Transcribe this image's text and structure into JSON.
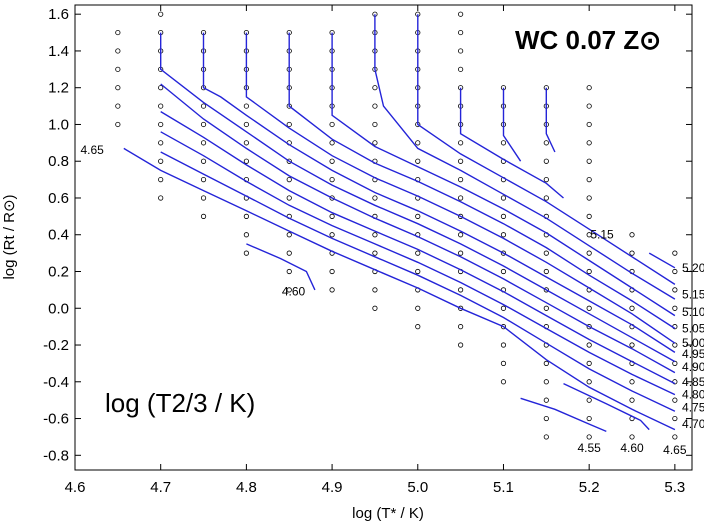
{
  "chart_data": {
    "type": "line",
    "title": "WC 0.07 Z⊙",
    "inner_label": "log (T2/3  / K)",
    "xlabel": "log (T* / K)",
    "ylabel": "log (Rt / R⊙)",
    "xlim": [
      4.6,
      5.32
    ],
    "ylim": [
      -0.88,
      1.65
    ],
    "xticks": [
      4.6,
      4.7,
      4.8,
      4.9,
      5.0,
      5.1,
      5.2,
      5.3
    ],
    "yticks": [
      -0.8,
      -0.6,
      -0.4,
      -0.2,
      0.0,
      0.2,
      0.4,
      0.6,
      0.8,
      1.0,
      1.2,
      1.4,
      1.6
    ],
    "grid": false,
    "line_color": "#2424d8",
    "model_grid_points": [
      {
        "x": 4.65,
        "y": [
          1.5,
          1.4,
          1.3,
          1.2,
          1.1,
          1.0
        ]
      },
      {
        "x": 4.7,
        "y": [
          1.6,
          1.5,
          1.4,
          1.3,
          1.2,
          1.1,
          1.0,
          0.9,
          0.8,
          0.7,
          0.6
        ]
      },
      {
        "x": 4.75,
        "y": [
          1.5,
          1.4,
          1.3,
          1.2,
          1.1,
          1.0,
          0.9,
          0.8,
          0.7,
          0.6,
          0.5
        ]
      },
      {
        "x": 4.8,
        "y": [
          1.5,
          1.4,
          1.3,
          1.2,
          1.1,
          1.0,
          0.9,
          0.8,
          0.7,
          0.6,
          0.5,
          0.4,
          0.3
        ]
      },
      {
        "x": 4.85,
        "y": [
          1.5,
          1.4,
          1.3,
          1.2,
          1.1,
          1.0,
          0.9,
          0.8,
          0.7,
          0.6,
          0.5,
          0.4,
          0.3,
          0.2,
          0.1
        ]
      },
      {
        "x": 4.9,
        "y": [
          1.5,
          1.4,
          1.3,
          1.2,
          1.1,
          1.0,
          0.9,
          0.8,
          0.7,
          0.6,
          0.5,
          0.4,
          0.3,
          0.2,
          0.1
        ]
      },
      {
        "x": 4.95,
        "y": [
          1.6,
          1.5,
          1.4,
          1.3,
          1.2,
          1.1,
          1.0,
          0.9,
          0.8,
          0.7,
          0.6,
          0.5,
          0.4,
          0.3,
          0.2,
          0.1,
          0.0
        ]
      },
      {
        "x": 5.0,
        "y": [
          1.6,
          1.5,
          1.4,
          1.3,
          1.2,
          1.1,
          1.0,
          0.9,
          0.8,
          0.7,
          0.6,
          0.5,
          0.4,
          0.3,
          0.2,
          0.1,
          0.0,
          -0.1
        ]
      },
      {
        "x": 5.05,
        "y": [
          1.6,
          1.5,
          1.4,
          1.3,
          1.2,
          1.1,
          1.0,
          0.9,
          0.8,
          0.7,
          0.6,
          0.5,
          0.4,
          0.3,
          0.2,
          0.1,
          0.0,
          -0.1,
          -0.2
        ]
      },
      {
        "x": 5.1,
        "y": [
          1.2,
          1.1,
          1.0,
          0.9,
          0.8,
          0.7,
          0.6,
          0.5,
          0.4,
          0.3,
          0.2,
          0.1,
          0.0,
          -0.1,
          -0.2,
          -0.3,
          -0.4
        ]
      },
      {
        "x": 5.15,
        "y": [
          1.2,
          1.1,
          1.0,
          0.9,
          0.8,
          0.7,
          0.6,
          0.5,
          0.4,
          0.3,
          0.2,
          0.1,
          0.0,
          -0.1,
          -0.2,
          -0.3,
          -0.4,
          -0.5,
          -0.6,
          -0.7
        ]
      },
      {
        "x": 5.2,
        "y": [
          1.2,
          1.1,
          1.0,
          0.9,
          0.8,
          0.7,
          0.6,
          0.5,
          0.4,
          0.3,
          0.2,
          0.1,
          0.0,
          -0.1,
          -0.2,
          -0.3,
          -0.4,
          -0.5,
          -0.6,
          -0.7
        ]
      },
      {
        "x": 5.25,
        "y": [
          0.4,
          0.3,
          0.2,
          0.1,
          0.0,
          -0.1,
          -0.2,
          -0.3,
          -0.4,
          -0.5,
          -0.6,
          -0.7
        ]
      },
      {
        "x": 5.3,
        "y": [
          0.3,
          0.2,
          0.1,
          0.0,
          -0.1,
          -0.2,
          -0.3,
          -0.4,
          -0.5,
          -0.6,
          -0.7
        ]
      }
    ],
    "series": [
      {
        "name": "4.55",
        "points": [
          [
            5.12,
            -0.49
          ],
          [
            5.16,
            -0.55
          ],
          [
            5.2,
            -0.63
          ],
          [
            5.22,
            -0.67
          ]
        ]
      },
      {
        "name": "4.60",
        "points": [
          [
            4.8,
            0.35
          ],
          [
            4.84,
            0.27
          ],
          [
            4.87,
            0.2
          ],
          [
            4.88,
            0.1
          ]
        ]
      },
      {
        "name": "4.60",
        "points": [
          [
            5.17,
            -0.41
          ],
          [
            5.22,
            -0.52
          ],
          [
            5.26,
            -0.61
          ],
          [
            5.27,
            -0.66
          ]
        ]
      },
      {
        "name": "4.65",
        "points": [
          [
            4.657,
            0.87
          ],
          [
            4.7,
            0.75
          ],
          [
            4.75,
            0.64
          ],
          [
            4.8,
            0.53
          ],
          [
            4.85,
            0.42
          ],
          [
            4.9,
            0.31
          ],
          [
            4.95,
            0.21
          ],
          [
            5.0,
            0.11
          ],
          [
            5.05,
            0.0
          ],
          [
            5.1,
            -0.1
          ],
          [
            5.15,
            -0.28
          ],
          [
            5.2,
            -0.43
          ],
          [
            5.25,
            -0.55
          ],
          [
            5.3,
            -0.66
          ]
        ]
      },
      {
        "name": "4.70",
        "points": [
          [
            4.7,
            0.85
          ],
          [
            4.75,
            0.73
          ],
          [
            4.8,
            0.61
          ],
          [
            4.85,
            0.49
          ],
          [
            4.9,
            0.38
          ],
          [
            4.95,
            0.28
          ],
          [
            5.0,
            0.18
          ],
          [
            5.05,
            0.07
          ],
          [
            5.1,
            -0.05
          ],
          [
            5.15,
            -0.19
          ],
          [
            5.2,
            -0.33
          ],
          [
            5.25,
            -0.45
          ],
          [
            5.3,
            -0.56
          ]
        ]
      },
      {
        "name": "4.75",
        "points": [
          [
            4.7,
            0.96
          ],
          [
            4.75,
            0.83
          ],
          [
            4.8,
            0.69
          ],
          [
            4.85,
            0.56
          ],
          [
            4.9,
            0.45
          ],
          [
            4.95,
            0.35
          ],
          [
            5.0,
            0.25
          ],
          [
            5.05,
            0.14
          ],
          [
            5.1,
            0.02
          ],
          [
            5.15,
            -0.11
          ],
          [
            5.2,
            -0.24
          ],
          [
            5.25,
            -0.36
          ],
          [
            5.3,
            -0.47
          ]
        ]
      },
      {
        "name": "4.80",
        "points": [
          [
            4.7,
            1.07
          ],
          [
            4.75,
            0.93
          ],
          [
            4.8,
            0.78
          ],
          [
            4.85,
            0.64
          ],
          [
            4.9,
            0.52
          ],
          [
            4.95,
            0.42
          ],
          [
            5.0,
            0.32
          ],
          [
            5.05,
            0.21
          ],
          [
            5.1,
            0.09
          ],
          [
            5.15,
            -0.04
          ],
          [
            5.2,
            -0.17
          ],
          [
            5.25,
            -0.29
          ],
          [
            5.3,
            -0.41
          ]
        ]
      },
      {
        "name": "4.85",
        "points": [
          [
            4.7,
            1.22
          ],
          [
            4.75,
            1.03
          ],
          [
            4.8,
            0.87
          ],
          [
            4.85,
            0.72
          ],
          [
            4.9,
            0.6
          ],
          [
            4.95,
            0.49
          ],
          [
            5.0,
            0.39
          ],
          [
            5.05,
            0.28
          ],
          [
            5.1,
            0.16
          ],
          [
            5.15,
            0.03
          ],
          [
            5.2,
            -0.1
          ],
          [
            5.25,
            -0.22
          ],
          [
            5.3,
            -0.35
          ]
        ]
      },
      {
        "name": "4.90",
        "points": [
          [
            4.7,
            1.5
          ],
          [
            4.7,
            1.3
          ],
          [
            4.75,
            1.12
          ],
          [
            4.8,
            0.96
          ],
          [
            4.85,
            0.8
          ],
          [
            4.9,
            0.67
          ],
          [
            4.95,
            0.56
          ],
          [
            5.0,
            0.46
          ],
          [
            5.05,
            0.35
          ],
          [
            5.1,
            0.23
          ],
          [
            5.15,
            0.1
          ],
          [
            5.2,
            -0.03
          ],
          [
            5.25,
            -0.16
          ],
          [
            5.3,
            -0.29
          ]
        ]
      },
      {
        "name": "4.95",
        "points": [
          [
            4.75,
            1.5
          ],
          [
            4.75,
            1.2
          ],
          [
            4.77,
            1.15
          ],
          [
            4.8,
            1.05
          ],
          [
            4.85,
            0.89
          ],
          [
            4.9,
            0.75
          ],
          [
            4.95,
            0.63
          ],
          [
            5.0,
            0.53
          ],
          [
            5.05,
            0.42
          ],
          [
            5.1,
            0.3
          ],
          [
            5.15,
            0.17
          ],
          [
            5.2,
            0.04
          ],
          [
            5.25,
            -0.09
          ],
          [
            5.3,
            -0.24
          ]
        ]
      },
      {
        "name": "5.00",
        "points": [
          [
            4.8,
            1.5
          ],
          [
            4.8,
            1.15
          ],
          [
            4.85,
            0.98
          ],
          [
            4.9,
            0.83
          ],
          [
            4.95,
            0.71
          ],
          [
            5.0,
            0.61
          ],
          [
            5.05,
            0.5
          ],
          [
            5.1,
            0.38
          ],
          [
            5.15,
            0.25
          ],
          [
            5.2,
            0.11
          ],
          [
            5.25,
            -0.03
          ],
          [
            5.3,
            -0.19
          ]
        ]
      },
      {
        "name": "5.05",
        "points": [
          [
            4.85,
            1.5
          ],
          [
            4.85,
            1.1
          ],
          [
            4.9,
            0.92
          ],
          [
            4.95,
            0.79
          ],
          [
            5.0,
            0.69
          ],
          [
            5.05,
            0.58
          ],
          [
            5.1,
            0.46
          ],
          [
            5.15,
            0.33
          ],
          [
            5.2,
            0.18
          ],
          [
            5.25,
            0.04
          ],
          [
            5.3,
            -0.11
          ]
        ]
      },
      {
        "name": "5.10",
        "points": [
          [
            4.9,
            1.5
          ],
          [
            4.9,
            1.05
          ],
          [
            4.95,
            0.88
          ],
          [
            5.0,
            0.77
          ],
          [
            5.05,
            0.66
          ],
          [
            5.1,
            0.54
          ],
          [
            5.15,
            0.41
          ],
          [
            5.2,
            0.26
          ],
          [
            5.25,
            0.11
          ],
          [
            5.3,
            -0.04
          ]
        ]
      },
      {
        "name": "5.15",
        "points": [
          [
            4.95,
            1.6
          ],
          [
            4.95,
            1.3
          ],
          [
            4.96,
            1.1
          ],
          [
            5.0,
            0.87
          ],
          [
            5.05,
            0.75
          ],
          [
            5.1,
            0.62
          ],
          [
            5.15,
            0.49
          ],
          [
            5.2,
            0.34
          ],
          [
            5.25,
            0.19
          ],
          [
            5.3,
            0.05
          ]
        ]
      },
      {
        "name": "5.15",
        "points": [
          [
            5.0,
            1.6
          ],
          [
            5.0,
            1.0
          ],
          [
            5.05,
            0.84
          ],
          [
            5.1,
            0.71
          ],
          [
            5.15,
            0.58
          ],
          [
            5.2,
            0.43
          ],
          [
            5.25,
            0.28
          ],
          [
            5.3,
            0.13
          ]
        ]
      },
      {
        "name": "",
        "points": [
          [
            5.05,
            1.2
          ],
          [
            5.05,
            0.95
          ],
          [
            5.1,
            0.81
          ],
          [
            5.15,
            0.68
          ],
          [
            5.17,
            0.6
          ]
        ]
      },
      {
        "name": "",
        "points": [
          [
            5.1,
            1.2
          ],
          [
            5.1,
            0.94
          ],
          [
            5.12,
            0.8
          ]
        ]
      },
      {
        "name": "",
        "points": [
          [
            5.15,
            1.2
          ],
          [
            5.15,
            0.95
          ],
          [
            5.16,
            0.85
          ]
        ]
      },
      {
        "name": "5.20",
        "points": [
          [
            5.27,
            0.3
          ],
          [
            5.3,
            0.22
          ]
        ]
      }
    ],
    "curve_labels": [
      {
        "text": "4.65",
        "x": 4.62,
        "y": 0.86
      },
      {
        "text": "4.60",
        "x": 4.855,
        "y": 0.09
      },
      {
        "text": "5.15",
        "x": 5.215,
        "y": 0.4
      },
      {
        "text": "5.20",
        "x": 5.322,
        "y": 0.22
      },
      {
        "text": "5.15",
        "x": 5.322,
        "y": 0.075
      },
      {
        "text": "5.10",
        "x": 5.322,
        "y": -0.02
      },
      {
        "text": "5.05",
        "x": 5.322,
        "y": -0.11
      },
      {
        "text": "5.00",
        "x": 5.322,
        "y": -0.19
      },
      {
        "text": "4.95",
        "x": 5.322,
        "y": -0.25
      },
      {
        "text": "4.90",
        "x": 5.322,
        "y": -0.32
      },
      {
        "text": "4.85",
        "x": 5.322,
        "y": -0.4
      },
      {
        "text": "4.80",
        "x": 5.322,
        "y": -0.47
      },
      {
        "text": "4.75",
        "x": 5.322,
        "y": -0.54
      },
      {
        "text": "4.70",
        "x": 5.322,
        "y": -0.63
      },
      {
        "text": "4.55",
        "x": 5.2,
        "y": -0.76
      },
      {
        "text": "4.60",
        "x": 5.25,
        "y": -0.76
      },
      {
        "text": "4.65",
        "x": 5.3,
        "y": -0.77
      }
    ]
  }
}
